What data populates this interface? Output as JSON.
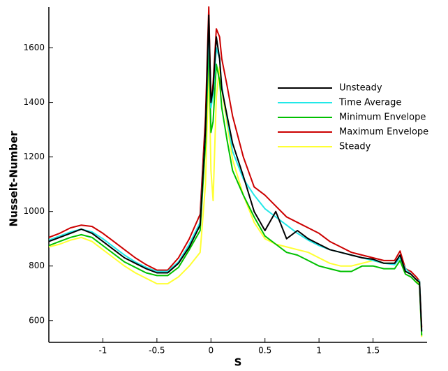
{
  "chart_data": {
    "type": "line",
    "x_label": "S",
    "y_label": "Nusselt-Number",
    "xlim": [
      -1.5,
      2.0
    ],
    "ylim": [
      520,
      1750
    ],
    "xticks": [
      -1,
      -0.5,
      0,
      0.5,
      1,
      1.5
    ],
    "yticks": [
      600,
      800,
      1000,
      1200,
      1400,
      1600
    ],
    "grid": false,
    "legend": "upper right",
    "x": [
      -1.5,
      -1.4,
      -1.3,
      -1.2,
      -1.1,
      -1.0,
      -0.9,
      -0.8,
      -0.7,
      -0.6,
      -0.5,
      -0.4,
      -0.3,
      -0.2,
      -0.1,
      -0.05,
      -0.02,
      0,
      0.02,
      0.05,
      0.08,
      0.1,
      0.15,
      0.2,
      0.3,
      0.4,
      0.5,
      0.6,
      0.7,
      0.8,
      0.9,
      1.0,
      1.1,
      1.2,
      1.3,
      1.4,
      1.5,
      1.6,
      1.7,
      1.75,
      1.8,
      1.85,
      1.9,
      1.93,
      1.95
    ],
    "series": [
      {
        "name": "Unsteady",
        "color": "#000000",
        "values": [
          890,
          905,
          920,
          935,
          920,
          890,
          860,
          830,
          810,
          790,
          775,
          775,
          810,
          870,
          950,
          1300,
          1720,
          1400,
          1450,
          1640,
          1560,
          1450,
          1350,
          1250,
          1130,
          1000,
          930,
          1000,
          900,
          930,
          900,
          880,
          860,
          850,
          840,
          830,
          825,
          810,
          810,
          840,
          780,
          770,
          750,
          740,
          560
        ]
      },
      {
        "name": "Time Average",
        "color": "#22e8e8",
        "values": [
          895,
          910,
          925,
          935,
          925,
          900,
          870,
          840,
          815,
          795,
          780,
          780,
          815,
          880,
          960,
          1300,
          1680,
          1380,
          1430,
          1600,
          1560,
          1460,
          1340,
          1220,
          1120,
          1060,
          1010,
          980,
          950,
          920,
          895,
          875,
          860,
          850,
          840,
          830,
          820,
          810,
          805,
          830,
          790,
          770,
          750,
          745,
          560
        ]
      },
      {
        "name": "Minimum Envelope",
        "color": "#00c000",
        "values": [
          875,
          890,
          905,
          915,
          905,
          875,
          845,
          815,
          795,
          775,
          765,
          765,
          795,
          860,
          930,
          1250,
          1620,
          1290,
          1330,
          1540,
          1480,
          1380,
          1260,
          1150,
          1060,
          980,
          910,
          880,
          850,
          840,
          820,
          800,
          790,
          780,
          780,
          800,
          800,
          790,
          790,
          820,
          770,
          760,
          740,
          730,
          545
        ]
      },
      {
        "name": "Maximum Envelope",
        "color": "#cc0000",
        "values": [
          905,
          920,
          940,
          950,
          945,
          920,
          890,
          860,
          830,
          805,
          785,
          785,
          830,
          900,
          990,
          1350,
          1750,
          1390,
          1470,
          1670,
          1640,
          1560,
          1460,
          1350,
          1200,
          1090,
          1060,
          1020,
          980,
          960,
          940,
          920,
          890,
          870,
          850,
          840,
          830,
          820,
          820,
          855,
          790,
          780,
          760,
          745,
          575
        ]
      },
      {
        "name": "Steady",
        "color": "#ffff33",
        "values": [
          870,
          880,
          895,
          905,
          890,
          860,
          830,
          800,
          775,
          755,
          735,
          735,
          760,
          800,
          850,
          1100,
          1540,
          1150,
          1040,
          1420,
          1530,
          1450,
          1320,
          1190,
          1060,
          960,
          900,
          880,
          870,
          860,
          850,
          830,
          810,
          800,
          800,
          810,
          820,
          810,
          810,
          830,
          780,
          770,
          750,
          730,
          540
        ]
      }
    ]
  }
}
